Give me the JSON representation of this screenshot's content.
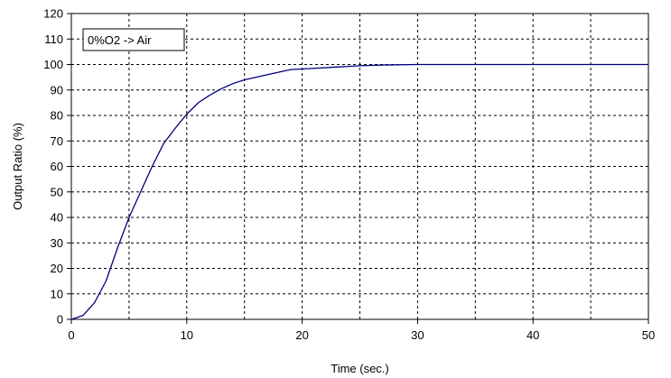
{
  "chart_data": {
    "type": "line",
    "title": "",
    "xlabel": "Time (sec.)",
    "ylabel": "Output Ratio (%)",
    "xlim": [
      0,
      50
    ],
    "ylim": [
      0,
      120
    ],
    "x_ticks": [
      0,
      10,
      20,
      30,
      40,
      50
    ],
    "y_ticks": [
      0,
      10,
      20,
      30,
      40,
      50,
      60,
      70,
      80,
      90,
      100,
      110,
      120
    ],
    "grid": {
      "x_minor": [
        5,
        15,
        25,
        35,
        45
      ],
      "style": "dashed"
    },
    "annotation": "0%O2 -> Air",
    "series": [
      {
        "color": "#000080",
        "x": [
          0,
          1,
          2,
          3,
          4,
          5,
          6,
          7,
          8,
          9,
          10,
          11,
          12,
          13,
          14,
          15,
          17,
          19,
          21,
          23,
          25,
          27,
          30,
          35,
          40,
          45,
          50
        ],
        "y": [
          0,
          1.5,
          6.5,
          15,
          28,
          40,
          50,
          60,
          69,
          75,
          80.5,
          85,
          88,
          90.5,
          92.5,
          94,
          96,
          98,
          98.5,
          99,
          99.5,
          99.8,
          100,
          100,
          100,
          100,
          100
        ]
      }
    ]
  }
}
